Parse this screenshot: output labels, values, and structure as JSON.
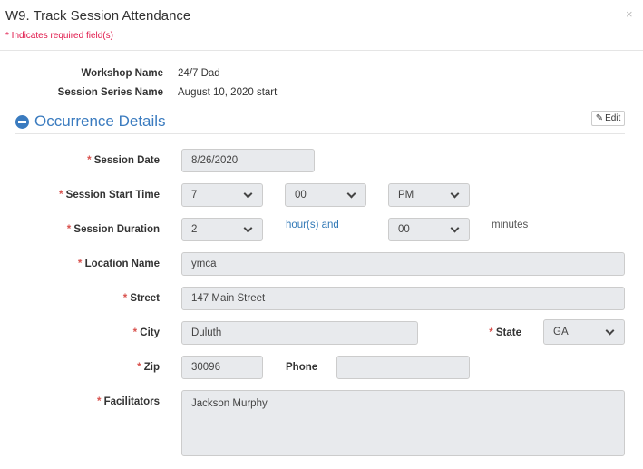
{
  "dialog": {
    "title": "W9. Track Session Attendance",
    "required_note": "* Indicates required field(s)",
    "close_icon": "×"
  },
  "info": {
    "workshop_label": "Workshop Name",
    "workshop_value": "24/7 Dad",
    "series_label": "Session Series Name",
    "series_value": "August 10, 2020 start"
  },
  "section": {
    "title": "Occurrence Details",
    "edit_label": "Edit",
    "edit_icon": "pencil-icon",
    "collapse_icon": "minus-circle-icon"
  },
  "form": {
    "required_mark": "*",
    "session_date": {
      "label": "Session Date",
      "value": "8/26/2020"
    },
    "start_time": {
      "label": "Session Start Time",
      "hour": "7",
      "minute": "00",
      "ampm": "PM"
    },
    "duration": {
      "label": "Session Duration",
      "hours": "2",
      "hours_suffix": "hour(s) and",
      "minutes": "00",
      "minutes_suffix": "minutes"
    },
    "location": {
      "label": "Location Name",
      "value": "ymca"
    },
    "street": {
      "label": "Street",
      "value": "147 Main Street"
    },
    "city": {
      "label": "City",
      "value": "Duluth"
    },
    "state": {
      "label": "State",
      "value": "GA"
    },
    "zip": {
      "label": "Zip",
      "value": "30096"
    },
    "phone": {
      "label": "Phone",
      "value": ""
    },
    "facilitators": {
      "label": "Facilitators",
      "value": "Jackson Murphy"
    }
  },
  "colors": {
    "accent": "#3a7bbf",
    "required": "#d9534f",
    "input_bg": "#e8eaed"
  }
}
